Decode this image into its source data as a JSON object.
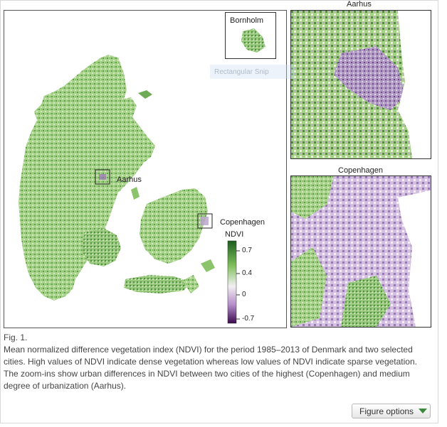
{
  "map": {
    "bornholm_label": "Bornholm",
    "aarhus_label": "Aarhus",
    "copenhagen_label": "Copenhagen",
    "aarhus_panel_title": "Aarhus",
    "copenhagen_panel_title": "Copenhagen",
    "legend": {
      "title": "NDVI",
      "ticks": [
        "0.7",
        "0.4",
        "0",
        "-0.7"
      ],
      "colors": [
        "#1b5e20",
        "#7fbf5a",
        "#f2f0f2",
        "#b28ac8",
        "#3b0a4d"
      ]
    },
    "colors": {
      "vegetation_dense": "#3f8f3a",
      "vegetation_medium": "#8cc46d",
      "vegetation_light": "#cfe6b8",
      "urban": "#9a6fb8"
    }
  },
  "overlay": {
    "snip_tooltip": "Rectangular Snip"
  },
  "caption": {
    "fig_label": "Fig. 1.",
    "text": "Mean normalized difference vegetation index (NDVI) for the period 1985–2013 of Denmark and two selected cities. High values of NDVI indicate dense vegetation whereas low values of NDVI indicate sparse vegetation. The zoom-ins show urban differences in NDVI between two cities of the highest (Copenhagen) and medium degree of urbanization (Aarhus)."
  },
  "figure_options": {
    "label": "Figure options"
  }
}
